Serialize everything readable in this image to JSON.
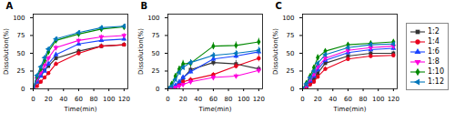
{
  "chart_data": [
    {
      "type": "line",
      "title": "A",
      "xlabel": "Time(min)",
      "ylabel": "Dissolution(%)",
      "x": [
        0,
        5,
        10,
        15,
        20,
        30,
        60,
        90,
        120
      ],
      "xlim": [
        0,
        125
      ],
      "ylim": [
        0,
        105
      ],
      "xticks": [
        0,
        20,
        40,
        60,
        80,
        100,
        120
      ],
      "yticks": [
        0,
        25,
        50,
        75,
        100
      ],
      "series": [
        {
          "name": "1:2",
          "color": "#333333",
          "marker": "square",
          "values": [
            0,
            10,
            20,
            26,
            32,
            43,
            53,
            60,
            62
          ],
          "errors": [
            0,
            2,
            2,
            2,
            2,
            3,
            3,
            3,
            3
          ]
        },
        {
          "name": "1:4",
          "color": "#e8001c",
          "marker": "circle",
          "values": [
            0,
            4,
            10,
            16,
            22,
            35,
            50,
            60,
            62
          ],
          "errors": [
            0,
            1,
            2,
            2,
            2,
            3,
            3,
            3,
            3
          ]
        },
        {
          "name": "1:6",
          "color": "#1a44ff",
          "marker": "triangle-up",
          "values": [
            0,
            10,
            18,
            25,
            35,
            48,
            63,
            68,
            70
          ],
          "errors": [
            0,
            2,
            2,
            2,
            3,
            3,
            3,
            3,
            3
          ]
        },
        {
          "name": "1:8",
          "color": "#ff00dd",
          "marker": "triangle-down",
          "values": [
            0,
            14,
            23,
            33,
            43,
            58,
            68,
            73,
            75
          ],
          "errors": [
            0,
            2,
            2,
            3,
            3,
            3,
            3,
            3,
            3
          ]
        },
        {
          "name": "1:10",
          "color": "#008800",
          "marker": "diamond",
          "values": [
            0,
            17,
            28,
            40,
            52,
            68,
            77,
            84,
            87
          ],
          "errors": [
            0,
            2,
            2,
            3,
            3,
            3,
            3,
            3,
            3
          ]
        },
        {
          "name": "1:12",
          "color": "#0077bb",
          "marker": "triangle-left",
          "values": [
            0,
            19,
            31,
            44,
            56,
            70,
            79,
            86,
            88
          ],
          "errors": [
            0,
            2,
            2,
            3,
            3,
            3,
            3,
            3,
            3
          ]
        }
      ]
    },
    {
      "type": "line",
      "title": "B",
      "xlabel": "Time(min)",
      "ylabel": "Dissolution(%)",
      "x": [
        0,
        5,
        10,
        15,
        20,
        30,
        60,
        90,
        120
      ],
      "xlim": [
        0,
        125
      ],
      "ylim": [
        0,
        105
      ],
      "xticks": [
        0,
        20,
        40,
        60,
        80,
        100,
        120
      ],
      "yticks": [
        0,
        25,
        50,
        75,
        100
      ],
      "series": [
        {
          "name": "1:2",
          "color": "#333333",
          "marker": "square",
          "values": [
            0,
            1,
            3,
            8,
            15,
            27,
            37,
            35,
            28
          ],
          "errors": [
            0,
            1,
            2,
            2,
            3,
            4,
            5,
            5,
            4
          ]
        },
        {
          "name": "1:4",
          "color": "#e8001c",
          "marker": "circle",
          "values": [
            0,
            1,
            3,
            6,
            10,
            13,
            20,
            32,
            43
          ],
          "errors": [
            0,
            1,
            1,
            2,
            2,
            3,
            3,
            4,
            5
          ]
        },
        {
          "name": "1:6",
          "color": "#1a44ff",
          "marker": "triangle-up",
          "values": [
            0,
            2,
            5,
            10,
            16,
            24,
            42,
            46,
            52
          ],
          "errors": [
            0,
            1,
            2,
            2,
            3,
            3,
            4,
            4,
            5
          ]
        },
        {
          "name": "1:8",
          "color": "#ff00dd",
          "marker": "triangle-down",
          "values": [
            0,
            1,
            2,
            4,
            6,
            10,
            16,
            18,
            26
          ],
          "errors": [
            0,
            1,
            1,
            2,
            2,
            3,
            3,
            3,
            4
          ]
        },
        {
          "name": "1:10",
          "color": "#008800",
          "marker": "diamond",
          "values": [
            0,
            7,
            18,
            28,
            35,
            36,
            60,
            61,
            66
          ],
          "errors": [
            0,
            2,
            3,
            4,
            5,
            5,
            5,
            5,
            5
          ]
        },
        {
          "name": "1:12",
          "color": "#0077bb",
          "marker": "triangle-left",
          "values": [
            0,
            4,
            13,
            23,
            30,
            37,
            47,
            50,
            54
          ],
          "errors": [
            0,
            1,
            2,
            3,
            3,
            4,
            4,
            4,
            5
          ]
        }
      ]
    },
    {
      "type": "line",
      "title": "C",
      "xlabel": "Time(min)",
      "ylabel": "Dissolution(%)",
      "x": [
        0,
        5,
        10,
        15,
        20,
        30,
        60,
        90,
        120
      ],
      "xlim": [
        0,
        125
      ],
      "ylim": [
        0,
        105
      ],
      "xticks": [
        0,
        20,
        40,
        60,
        80,
        100,
        120
      ],
      "yticks": [
        0,
        25,
        50,
        75,
        100
      ],
      "legend": "right",
      "series": [
        {
          "name": "1:2",
          "color": "#333333",
          "marker": "square",
          "values": [
            0,
            3,
            8,
            14,
            22,
            36,
            46,
            50,
            50
          ],
          "errors": [
            0,
            1,
            2,
            2,
            3,
            3,
            3,
            3,
            3
          ]
        },
        {
          "name": "1:4",
          "color": "#e8001c",
          "marker": "circle",
          "values": [
            0,
            2,
            6,
            10,
            17,
            28,
            42,
            46,
            47
          ],
          "errors": [
            0,
            1,
            2,
            2,
            3,
            3,
            3,
            3,
            3
          ]
        },
        {
          "name": "1:6",
          "color": "#1a44ff",
          "marker": "triangle-up",
          "values": [
            0,
            4,
            11,
            18,
            27,
            40,
            51,
            55,
            57
          ],
          "errors": [
            0,
            1,
            2,
            2,
            3,
            3,
            3,
            3,
            3
          ]
        },
        {
          "name": "1:8",
          "color": "#ff00dd",
          "marker": "triangle-down",
          "values": [
            0,
            5,
            14,
            21,
            31,
            43,
            54,
            58,
            60
          ],
          "errors": [
            0,
            1,
            2,
            2,
            3,
            3,
            3,
            3,
            3
          ]
        },
        {
          "name": "1:10",
          "color": "#008800",
          "marker": "diamond",
          "values": [
            0,
            8,
            18,
            30,
            44,
            53,
            62,
            64,
            66
          ],
          "errors": [
            0,
            2,
            2,
            3,
            4,
            3,
            3,
            3,
            3
          ]
        },
        {
          "name": "1:12",
          "color": "#0077bb",
          "marker": "triangle-left",
          "values": [
            0,
            7,
            16,
            25,
            36,
            48,
            58,
            62,
            63
          ],
          "errors": [
            0,
            1,
            2,
            2,
            3,
            3,
            3,
            3,
            3
          ]
        }
      ]
    }
  ]
}
